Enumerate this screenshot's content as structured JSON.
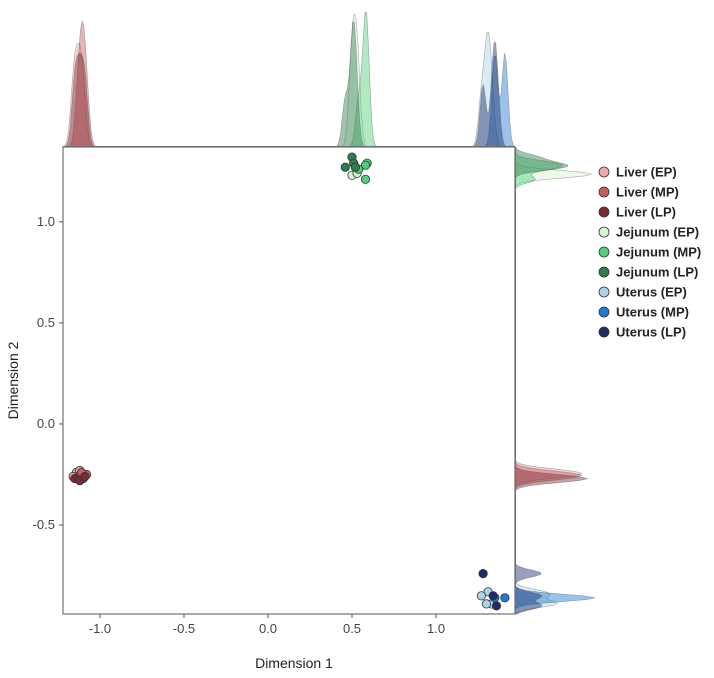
{
  "chart_data": {
    "type": "scatter",
    "title": "",
    "xlabel": "Dimension 1",
    "ylabel": "Dimension 2",
    "xlim": [
      -1.22,
      1.47
    ],
    "ylim": [
      -0.94,
      1.37
    ],
    "xticks": [
      -1.0,
      -0.5,
      0.0,
      0.5,
      1.0
    ],
    "xtick_labels": [
      "-1.0",
      "-0.5",
      "0.0",
      "0.5",
      "1.0"
    ],
    "yticks": [
      -0.5,
      0.0,
      0.5,
      1.0
    ],
    "ytick_labels": [
      "-0.5",
      "0.0",
      "0.5",
      "1.0"
    ],
    "grid": false,
    "legend_position": "right",
    "marginal_densities": true,
    "series": [
      {
        "name": "Liver (EP)",
        "color": "#f0a8ab",
        "points": [
          [
            -1.14,
            -0.24
          ],
          [
            -1.16,
            -0.26
          ],
          [
            -1.12,
            -0.23
          ],
          [
            -1.1,
            -0.25
          ]
        ]
      },
      {
        "name": "Liver (MP)",
        "color": "#c85a5e",
        "points": [
          [
            -1.13,
            -0.26
          ],
          [
            -1.1,
            -0.27
          ],
          [
            -1.08,
            -0.25
          ],
          [
            -1.11,
            -0.24
          ]
        ]
      },
      {
        "name": "Liver (LP)",
        "color": "#7a2c32",
        "points": [
          [
            -1.15,
            -0.27
          ],
          [
            -1.12,
            -0.28
          ],
          [
            -1.09,
            -0.26
          ]
        ]
      },
      {
        "name": "Jejunum (EP)",
        "color": "#d8f3cf",
        "points": [
          [
            0.5,
            1.23
          ],
          [
            0.53,
            1.24
          ]
        ]
      },
      {
        "name": "Jejunum (MP)",
        "color": "#4fd17a",
        "points": [
          [
            0.59,
            1.29
          ],
          [
            0.58,
            1.21
          ],
          [
            0.58,
            1.28
          ],
          [
            0.54,
            1.26
          ]
        ]
      },
      {
        "name": "Jejunum (LP)",
        "color": "#2e7d4f",
        "points": [
          [
            0.5,
            1.32
          ],
          [
            0.51,
            1.29
          ],
          [
            0.46,
            1.27
          ],
          [
            0.52,
            1.27
          ]
        ]
      },
      {
        "name": "Uterus (EP)",
        "color": "#a9d4e8",
        "points": [
          [
            1.31,
            -0.83
          ],
          [
            1.27,
            -0.85
          ],
          [
            1.33,
            -0.89
          ],
          [
            1.3,
            -0.89
          ]
        ]
      },
      {
        "name": "Uterus (MP)",
        "color": "#1f78d1",
        "points": [
          [
            1.41,
            -0.86
          ],
          [
            1.35,
            -0.86
          ]
        ]
      },
      {
        "name": "Uterus (LP)",
        "color": "#1b2c6b",
        "points": [
          [
            1.28,
            -0.74
          ],
          [
            1.34,
            -0.85
          ],
          [
            1.36,
            -0.9
          ]
        ]
      }
    ]
  }
}
